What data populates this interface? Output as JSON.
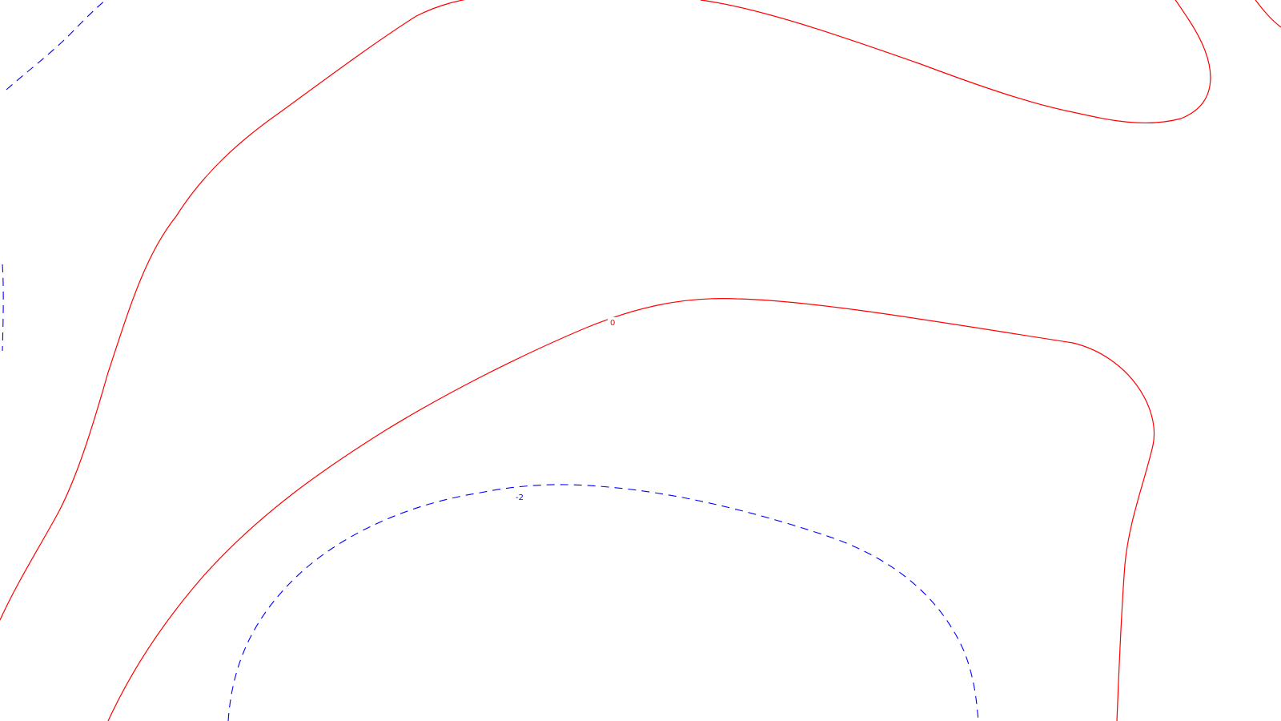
{
  "contour_map": {
    "colors": {
      "positive_or_zero": "#ff0000",
      "negative": "#0000ff",
      "background": "#ffffff"
    },
    "line_styles": {
      "zero": "solid",
      "negative": "dashed"
    },
    "labels": {
      "zero_contour": "0",
      "negative_two_contour": "-2"
    }
  }
}
